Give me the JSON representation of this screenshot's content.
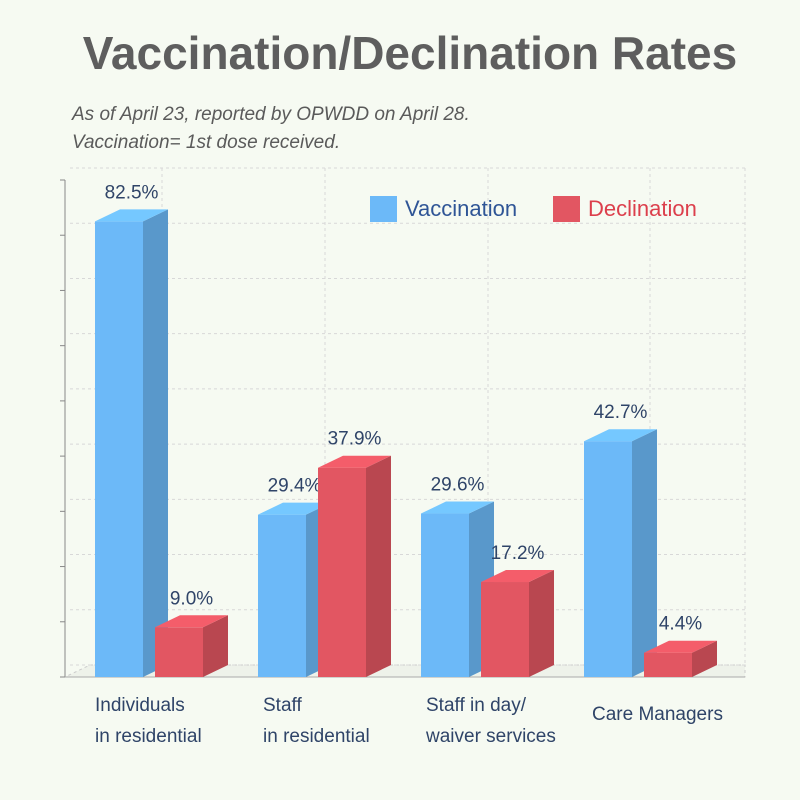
{
  "chart_data": {
    "type": "bar3d",
    "title": "Vaccination/Declination Rates",
    "subtitle": [
      "As of April 23, reported by OPWDD on April 28.",
      "Vaccination= 1st dose received."
    ],
    "categories": [
      [
        "Individuals",
        "in residential"
      ],
      [
        "Staff",
        "in residential"
      ],
      [
        "Staff in day/",
        "waiver services"
      ],
      [
        "Care Managers"
      ]
    ],
    "series": [
      {
        "name": "Vaccination",
        "color": "#6cb9f8",
        "text_color": "#2f5596",
        "values": [
          82.5,
          29.4,
          29.6,
          42.7
        ],
        "value_labels": [
          "82.5%",
          "29.4%",
          "29.6%",
          "42.7%"
        ]
      },
      {
        "name": "Declination",
        "color": "#e25662",
        "text_color": "#dc3f4c",
        "values": [
          9.0,
          37.9,
          17.2,
          4.4
        ],
        "value_labels": [
          "9.0%",
          "37.9%",
          "17.2%",
          "4.4%"
        ]
      }
    ],
    "ylim": [
      0,
      90
    ],
    "yticks": [
      0,
      10,
      20,
      30,
      40,
      50,
      60,
      70,
      80,
      90
    ],
    "grid": true
  }
}
